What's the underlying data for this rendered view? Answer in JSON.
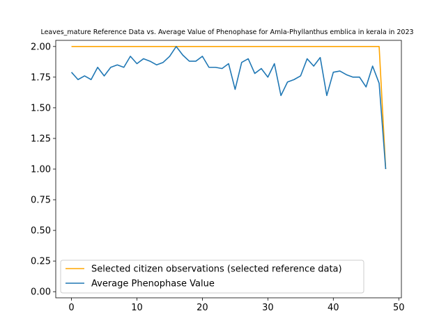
{
  "chart_data": {
    "type": "line",
    "title": "Leaves_mature Reference Data vs. Average Value of Phenophase for Amla-Phyllanthus emblica in kerala in 2023",
    "xlabel": "",
    "ylabel": "",
    "xlim": [
      -2.4,
      50.4
    ],
    "ylim": [
      -0.05,
      2.05
    ],
    "xticks": [
      0,
      10,
      20,
      30,
      40,
      50
    ],
    "yticks": [
      0.0,
      0.25,
      0.5,
      0.75,
      1.0,
      1.25,
      1.5,
      1.75,
      2.0
    ],
    "ytick_labels": [
      "0.00",
      "0.25",
      "0.50",
      "0.75",
      "1.00",
      "1.25",
      "1.50",
      "1.75",
      "2.00"
    ],
    "grid": false,
    "legend_position": "lower-left",
    "series": [
      {
        "name": "Selected citizen observations (selected reference data)",
        "color": "#ffa500",
        "x": [
          0,
          47,
          48
        ],
        "y": [
          2.0,
          2.0,
          1.0
        ]
      },
      {
        "name": "Average Phenophase Value",
        "color": "#1f77b4",
        "x": [
          0,
          1,
          2,
          3,
          4,
          5,
          6,
          7,
          8,
          9,
          10,
          11,
          12,
          13,
          14,
          15,
          16,
          17,
          18,
          19,
          20,
          21,
          22,
          23,
          24,
          25,
          26,
          27,
          28,
          29,
          30,
          31,
          32,
          33,
          34,
          35,
          36,
          37,
          38,
          39,
          40,
          41,
          42,
          43,
          44,
          45,
          46,
          47,
          48
        ],
        "y": [
          1.79,
          1.73,
          1.76,
          1.73,
          1.83,
          1.76,
          1.83,
          1.85,
          1.83,
          1.92,
          1.86,
          1.9,
          1.88,
          1.85,
          1.87,
          1.92,
          2.0,
          1.93,
          1.88,
          1.88,
          1.92,
          1.83,
          1.83,
          1.82,
          1.86,
          1.65,
          1.87,
          1.9,
          1.78,
          1.82,
          1.75,
          1.86,
          1.6,
          1.71,
          1.73,
          1.76,
          1.9,
          1.84,
          1.91,
          1.6,
          1.79,
          1.8,
          1.77,
          1.75,
          1.75,
          1.67,
          1.84,
          1.7,
          1.0
        ]
      }
    ]
  }
}
